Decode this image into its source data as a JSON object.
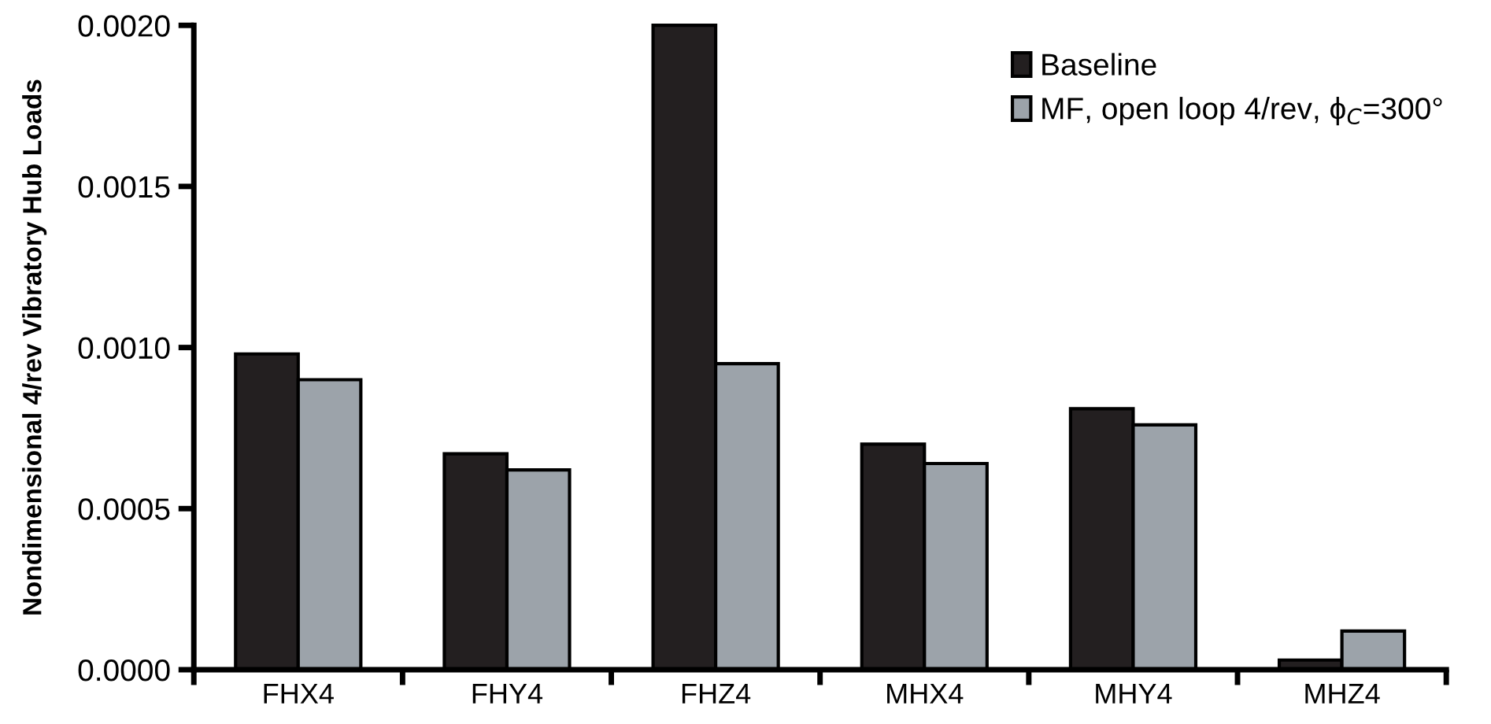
{
  "chart_data": {
    "type": "bar",
    "ylabel": "Nondimensional 4/rev Vibratory Hub Loads",
    "categories": [
      "FHX4",
      "FHY4",
      "FHZ4",
      "MHX4",
      "MHY4",
      "MHZ4"
    ],
    "series": [
      {
        "name": "Baseline",
        "color": "#231f20",
        "values": [
          0.00098,
          0.00067,
          0.002,
          0.0007,
          0.00081,
          3e-05
        ]
      },
      {
        "name": "MF, open loop 4/rev, ϕ$_{C}$=300°",
        "color": "#9ca3aa",
        "values": [
          0.0009,
          0.00062,
          0.00095,
          0.00064,
          0.00076,
          0.00012
        ]
      }
    ],
    "ylim": [
      0,
      0.002
    ],
    "yticks": [
      {
        "value": 0,
        "label": "0.0000"
      },
      {
        "value": 0.0005,
        "label": "0.0005"
      },
      {
        "value": 0.001,
        "label": "0.0010"
      },
      {
        "value": 0.0015,
        "label": "0.0015"
      },
      {
        "value": 0.002,
        "label": "0.0020"
      }
    ],
    "grid": false,
    "legend": "top right"
  }
}
